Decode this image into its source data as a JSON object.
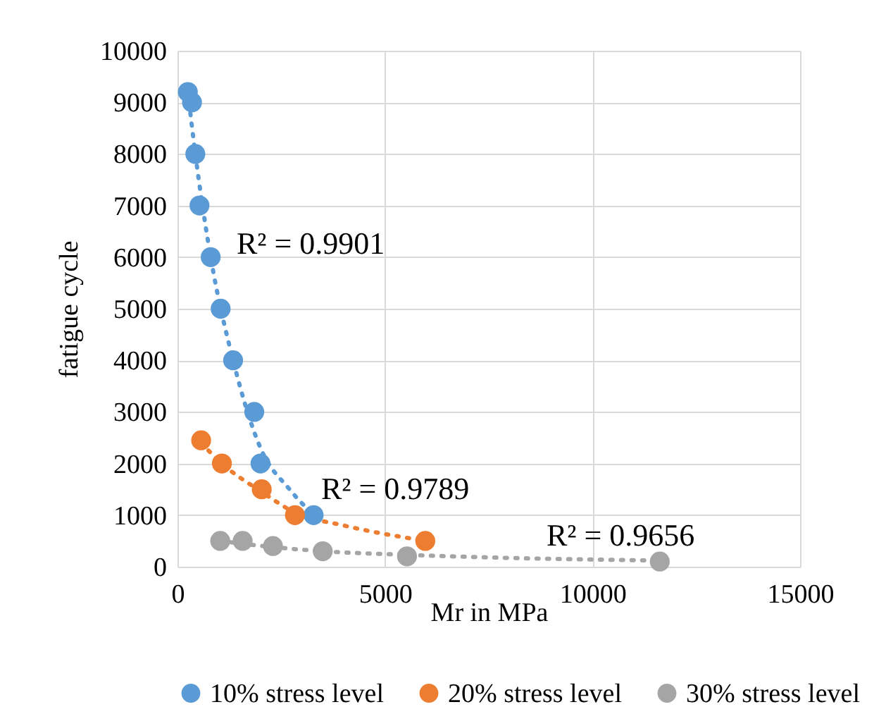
{
  "chart_data": {
    "type": "scatter",
    "xlabel": "Mr in MPa",
    "ylabel": "fatigue cycle",
    "xlim": [
      0,
      15000
    ],
    "xticks": [
      0,
      5000,
      10000,
      15000
    ],
    "ylim": [
      0,
      10000
    ],
    "yticks": [
      0,
      1000,
      2000,
      3000,
      4000,
      5000,
      6000,
      7000,
      8000,
      9000,
      10000
    ],
    "grid": true,
    "legend": "bottom",
    "marker": "circle",
    "series": [
      {
        "name": "10% stress level",
        "color": "#5b9bd5",
        "x": [
          250,
          350,
          430,
          530,
          800,
          1040,
          1340,
          1850,
          2000,
          3280
        ],
        "values": [
          9200,
          9000,
          8000,
          7000,
          6000,
          5000,
          4000,
          3000,
          2000,
          1000
        ]
      },
      {
        "name": "20% stress level",
        "color": "#ed7d31",
        "x": [
          570,
          1070,
          2030,
          2830,
          5970
        ],
        "values": [
          2450,
          2000,
          1500,
          1000,
          500
        ]
      },
      {
        "name": "30% stress level",
        "color": "#a5a5a5",
        "x": [
          1030,
          1570,
          2300,
          3500,
          5530,
          11620
        ],
        "values": [
          500,
          500,
          400,
          300,
          200,
          100
        ]
      },
      {
        "type": "line",
        "marker": "none",
        "line_style": "dotted",
        "color": "#5b9bd5",
        "x": [
          250,
          430,
          800,
          1340,
          2000,
          2700,
          3280
        ],
        "values": [
          9200,
          8000,
          6000,
          4000,
          2300,
          1500,
          1000
        ]
      },
      {
        "type": "line",
        "marker": "none",
        "line_style": "dotted",
        "color": "#ed7d31",
        "x": [
          570,
          1070,
          2030,
          2830,
          4000,
          5970
        ],
        "values": [
          2400,
          2000,
          1450,
          1050,
          800,
          500
        ]
      },
      {
        "type": "line",
        "marker": "none",
        "line_style": "dotted",
        "color": "#a5a5a5",
        "x": [
          1030,
          2300,
          3500,
          5530,
          8000,
          11620
        ],
        "values": [
          500,
          380,
          300,
          230,
          170,
          120
        ]
      }
    ],
    "annotations": [
      "R² = 0.9901",
      "R² = 0.9789",
      "R² = 0.9656"
    ]
  }
}
